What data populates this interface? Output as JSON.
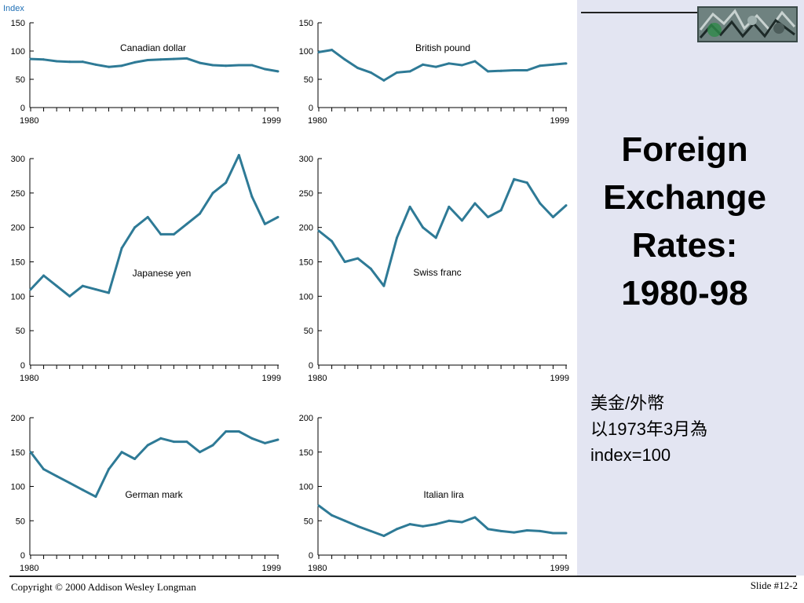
{
  "slide": {
    "title_lines": [
      "Foreign",
      "Exchange",
      "Rates:",
      "1980-98"
    ],
    "note_lines": [
      "美金/外幣",
      "以1973年3月為",
      "index=100"
    ],
    "copyright": "Copyright © 2000 Addison Wesley Longman",
    "slide_number": "Slide #12-2",
    "logo_icon": "circuit-board-image",
    "colors": {
      "line": "#2e7a96",
      "panel": "#e3e5f2",
      "axis_label": "#1f6fb5"
    }
  },
  "chart_data": [
    {
      "type": "line",
      "name": "Canadian dollar",
      "axis_title": "Index",
      "yticks": [
        0,
        50,
        100,
        150
      ],
      "ylim": [
        0,
        150
      ],
      "xlim": [
        1980,
        1999
      ],
      "xtick_labels": [
        "1980",
        "1999"
      ],
      "x": [
        1980,
        1981,
        1982,
        1983,
        1984,
        1985,
        1986,
        1987,
        1988,
        1989,
        1990,
        1991,
        1992,
        1993,
        1994,
        1995,
        1996,
        1997,
        1998,
        1999
      ],
      "values": [
        86,
        85,
        82,
        81,
        81,
        76,
        72,
        74,
        80,
        84,
        85,
        86,
        87,
        79,
        75,
        74,
        75,
        75,
        68,
        64
      ]
    },
    {
      "type": "line",
      "name": "British pound",
      "yticks": [
        0,
        50,
        100,
        150
      ],
      "ylim": [
        0,
        150
      ],
      "xlim": [
        1980,
        1999
      ],
      "xtick_labels": [
        "1980",
        "1999"
      ],
      "x": [
        1980,
        1981,
        1982,
        1983,
        1984,
        1985,
        1986,
        1987,
        1988,
        1989,
        1990,
        1991,
        1992,
        1993,
        1994,
        1995,
        1996,
        1997,
        1998,
        1999
      ],
      "values": [
        98,
        102,
        85,
        70,
        62,
        48,
        62,
        64,
        76,
        72,
        78,
        75,
        82,
        64,
        65,
        66,
        66,
        74,
        76,
        78
      ]
    },
    {
      "type": "line",
      "name": "Japanese yen",
      "yticks": [
        0,
        50,
        100,
        150,
        200,
        250,
        300
      ],
      "ylim": [
        0,
        300
      ],
      "xlim": [
        1980,
        1999
      ],
      "xtick_labels": [
        "1980",
        "1999"
      ],
      "x": [
        1980,
        1981,
        1982,
        1983,
        1984,
        1985,
        1986,
        1987,
        1988,
        1989,
        1990,
        1991,
        1992,
        1993,
        1994,
        1995,
        1996,
        1997,
        1998,
        1999
      ],
      "values": [
        110,
        130,
        115,
        100,
        115,
        110,
        105,
        170,
        200,
        215,
        190,
        190,
        205,
        220,
        250,
        265,
        305,
        245,
        205,
        215
      ]
    },
    {
      "type": "line",
      "name": "Swiss franc",
      "yticks": [
        0,
        50,
        100,
        150,
        200,
        250,
        300
      ],
      "ylim": [
        0,
        300
      ],
      "xlim": [
        1980,
        1999
      ],
      "xtick_labels": [
        "1980",
        "1999"
      ],
      "x": [
        1980,
        1981,
        1982,
        1983,
        1984,
        1985,
        1986,
        1987,
        1988,
        1989,
        1990,
        1991,
        1992,
        1993,
        1994,
        1995,
        1996,
        1997,
        1998,
        1999
      ],
      "values": [
        195,
        180,
        150,
        155,
        140,
        115,
        185,
        230,
        200,
        185,
        230,
        210,
        235,
        215,
        225,
        270,
        265,
        235,
        215,
        232
      ]
    },
    {
      "type": "line",
      "name": "German mark",
      "yticks": [
        0,
        50,
        100,
        150,
        200
      ],
      "ylim": [
        0,
        200
      ],
      "xlim": [
        1980,
        1999
      ],
      "xtick_labels": [
        "1980",
        "1999"
      ],
      "x": [
        1980,
        1981,
        1982,
        1983,
        1984,
        1985,
        1986,
        1987,
        1988,
        1989,
        1990,
        1991,
        1992,
        1993,
        1994,
        1995,
        1996,
        1997,
        1998,
        1999
      ],
      "values": [
        150,
        125,
        115,
        105,
        95,
        85,
        125,
        150,
        140,
        160,
        170,
        165,
        165,
        150,
        160,
        180,
        180,
        170,
        163,
        168
      ]
    },
    {
      "type": "line",
      "name": "Italian lira",
      "yticks": [
        0,
        50,
        100,
        150,
        200
      ],
      "ylim": [
        0,
        200
      ],
      "xlim": [
        1980,
        1999
      ],
      "xtick_labels": [
        "1980",
        "1999"
      ],
      "x": [
        1980,
        1981,
        1982,
        1983,
        1984,
        1985,
        1986,
        1987,
        1988,
        1989,
        1990,
        1991,
        1992,
        1993,
        1994,
        1995,
        1996,
        1997,
        1998,
        1999
      ],
      "values": [
        72,
        58,
        50,
        42,
        35,
        28,
        38,
        45,
        42,
        45,
        50,
        48,
        55,
        38,
        35,
        33,
        36,
        35,
        32,
        32
      ]
    }
  ]
}
